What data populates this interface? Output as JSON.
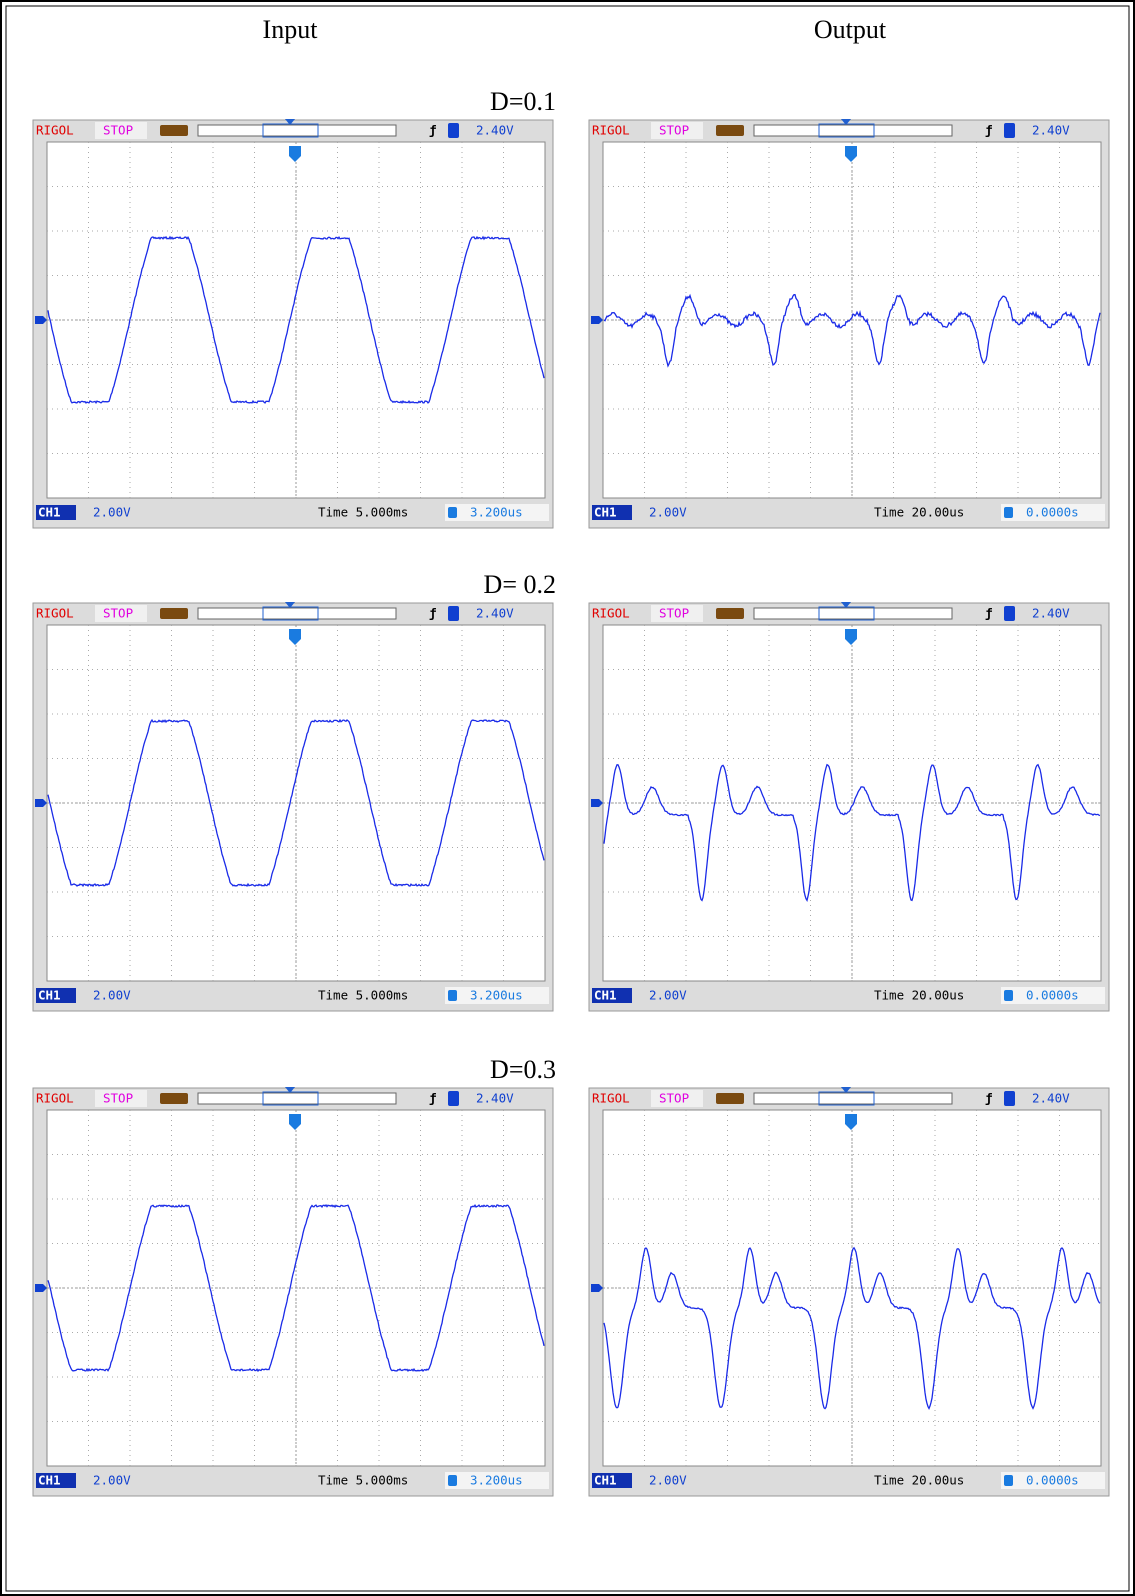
{
  "header": {
    "input": "Input",
    "output": "Output"
  },
  "rows": [
    {
      "label": "D=0.1",
      "input": {
        "brand": "RIGOL",
        "status": "STOP",
        "trigger_level": "2.40V",
        "channel": "CH1",
        "scale": "2.00V",
        "time_base": "Time 5.000ms",
        "offset": "3.200us"
      },
      "output": {
        "brand": "RIGOL",
        "status": "STOP",
        "trigger_level": "2.40V",
        "channel": "CH1",
        "scale": "2.00V",
        "time_base": "Time 20.00us",
        "offset": "0.0000s"
      }
    },
    {
      "label": "D= 0.2",
      "input": {
        "brand": "RIGOL",
        "status": "STOP",
        "trigger_level": "2.40V",
        "channel": "CH1",
        "scale": "2.00V",
        "time_base": "Time 5.000ms",
        "offset": "3.200us"
      },
      "output": {
        "brand": "RIGOL",
        "status": "STOP",
        "trigger_level": "2.40V",
        "channel": "CH1",
        "scale": "2.00V",
        "time_base": "Time 20.00us",
        "offset": "0.0000s"
      }
    },
    {
      "label": "D=0.3",
      "input": {
        "brand": "RIGOL",
        "status": "STOP",
        "trigger_level": "2.40V",
        "channel": "CH1",
        "scale": "2.00V",
        "time_base": "Time 5.000ms",
        "offset": "3.200us"
      },
      "output": {
        "brand": "RIGOL",
        "status": "STOP",
        "trigger_level": "2.40V",
        "channel": "CH1",
        "scale": "2.00V",
        "time_base": "Time 20.00us",
        "offset": "0.0000s"
      }
    }
  ]
}
